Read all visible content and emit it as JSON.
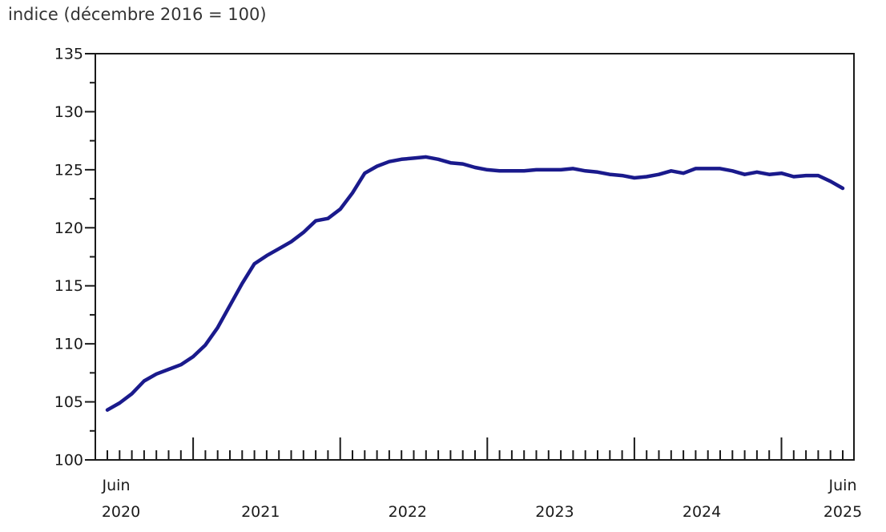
{
  "chart_data": {
    "type": "line",
    "title": "indice (décembre 2016 = 100)",
    "x": [
      "2020-06",
      "2020-07",
      "2020-08",
      "2020-09",
      "2020-10",
      "2020-11",
      "2020-12",
      "2021-01",
      "2021-02",
      "2021-03",
      "2021-04",
      "2021-05",
      "2021-06",
      "2021-07",
      "2021-08",
      "2021-09",
      "2021-10",
      "2021-11",
      "2021-12",
      "2022-01",
      "2022-02",
      "2022-03",
      "2022-04",
      "2022-05",
      "2022-06",
      "2022-07",
      "2022-08",
      "2022-09",
      "2022-10",
      "2022-11",
      "2022-12",
      "2023-01",
      "2023-02",
      "2023-03",
      "2023-04",
      "2023-05",
      "2023-06",
      "2023-07",
      "2023-08",
      "2023-09",
      "2023-10",
      "2023-11",
      "2023-12",
      "2024-01",
      "2024-02",
      "2024-03",
      "2024-04",
      "2024-05",
      "2024-06",
      "2024-07",
      "2024-08",
      "2024-09",
      "2024-10",
      "2024-11",
      "2024-12",
      "2025-01",
      "2025-02",
      "2025-03",
      "2025-04",
      "2025-05",
      "2025-06"
    ],
    "series": [
      {
        "name": "indice",
        "color": "#1a1a8c",
        "values": [
          104.3,
          104.9,
          105.7,
          106.8,
          107.4,
          107.8,
          108.2,
          108.9,
          109.9,
          111.4,
          113.3,
          115.2,
          116.9,
          117.6,
          118.2,
          118.8,
          119.6,
          120.6,
          120.8,
          121.6,
          123.0,
          124.7,
          125.3,
          125.7,
          125.9,
          126.0,
          126.1,
          125.9,
          125.6,
          125.5,
          125.2,
          125.0,
          124.9,
          124.9,
          124.9,
          125.0,
          125.0,
          125.0,
          125.1,
          124.9,
          124.8,
          124.6,
          124.5,
          124.3,
          124.4,
          124.6,
          124.9,
          124.7,
          125.1,
          125.1,
          125.1,
          124.9,
          124.6,
          124.8,
          124.6,
          124.7,
          124.4,
          124.5,
          124.5,
          124.0,
          123.4
        ]
      }
    ],
    "ylim": [
      100,
      135
    ],
    "y_tick_labels": [
      "100",
      "105",
      "110",
      "115",
      "120",
      "125",
      "130",
      "135"
    ],
    "y_minor_step": 2.5,
    "x_labels": {
      "start_month": "Juin",
      "start_year": "2020",
      "mid_years": [
        "2021",
        "2022",
        "2023",
        "2024"
      ],
      "end_month": "Juin",
      "end_year": "2025"
    },
    "grid": "off",
    "legend": "none",
    "colors": {
      "line": "#1a1a8c",
      "axis": "#1a1a1a",
      "tick_text": "#1a1a1a",
      "title_text": "#333333"
    }
  }
}
